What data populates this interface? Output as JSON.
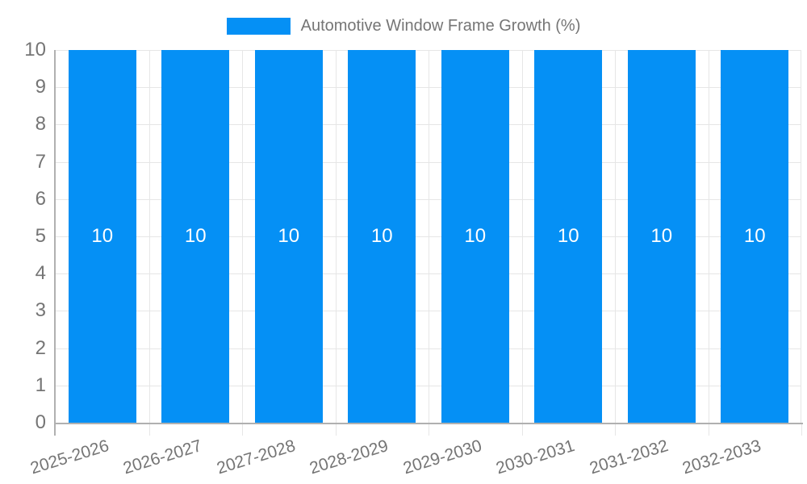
{
  "chart_data": {
    "type": "bar",
    "title": "",
    "legend": "Automotive Window Frame Growth (%)",
    "legend_position": "top-center",
    "categories": [
      "2025-2026",
      "2026-2027",
      "2027-2028",
      "2028-2029",
      "2029-2030",
      "2030-2031",
      "2031-2032",
      "2032-2033"
    ],
    "values": [
      10,
      10,
      10,
      10,
      10,
      10,
      10,
      10
    ],
    "bar_labels": [
      "10",
      "10",
      "10",
      "10",
      "10",
      "10",
      "10",
      "10"
    ],
    "xlabel": "",
    "ylabel": "",
    "ylim": [
      0,
      10
    ],
    "yticks": [
      0,
      1,
      2,
      3,
      4,
      5,
      6,
      7,
      8,
      9,
      10
    ],
    "grid": true,
    "x_label_rotation_deg": -17,
    "colors": {
      "bar": "#0590f5",
      "grid": "#e6e6e6",
      "axis": "#b0b0b0",
      "text": "#757575",
      "bar_label": "#ffffff",
      "background": "#ffffff"
    }
  }
}
